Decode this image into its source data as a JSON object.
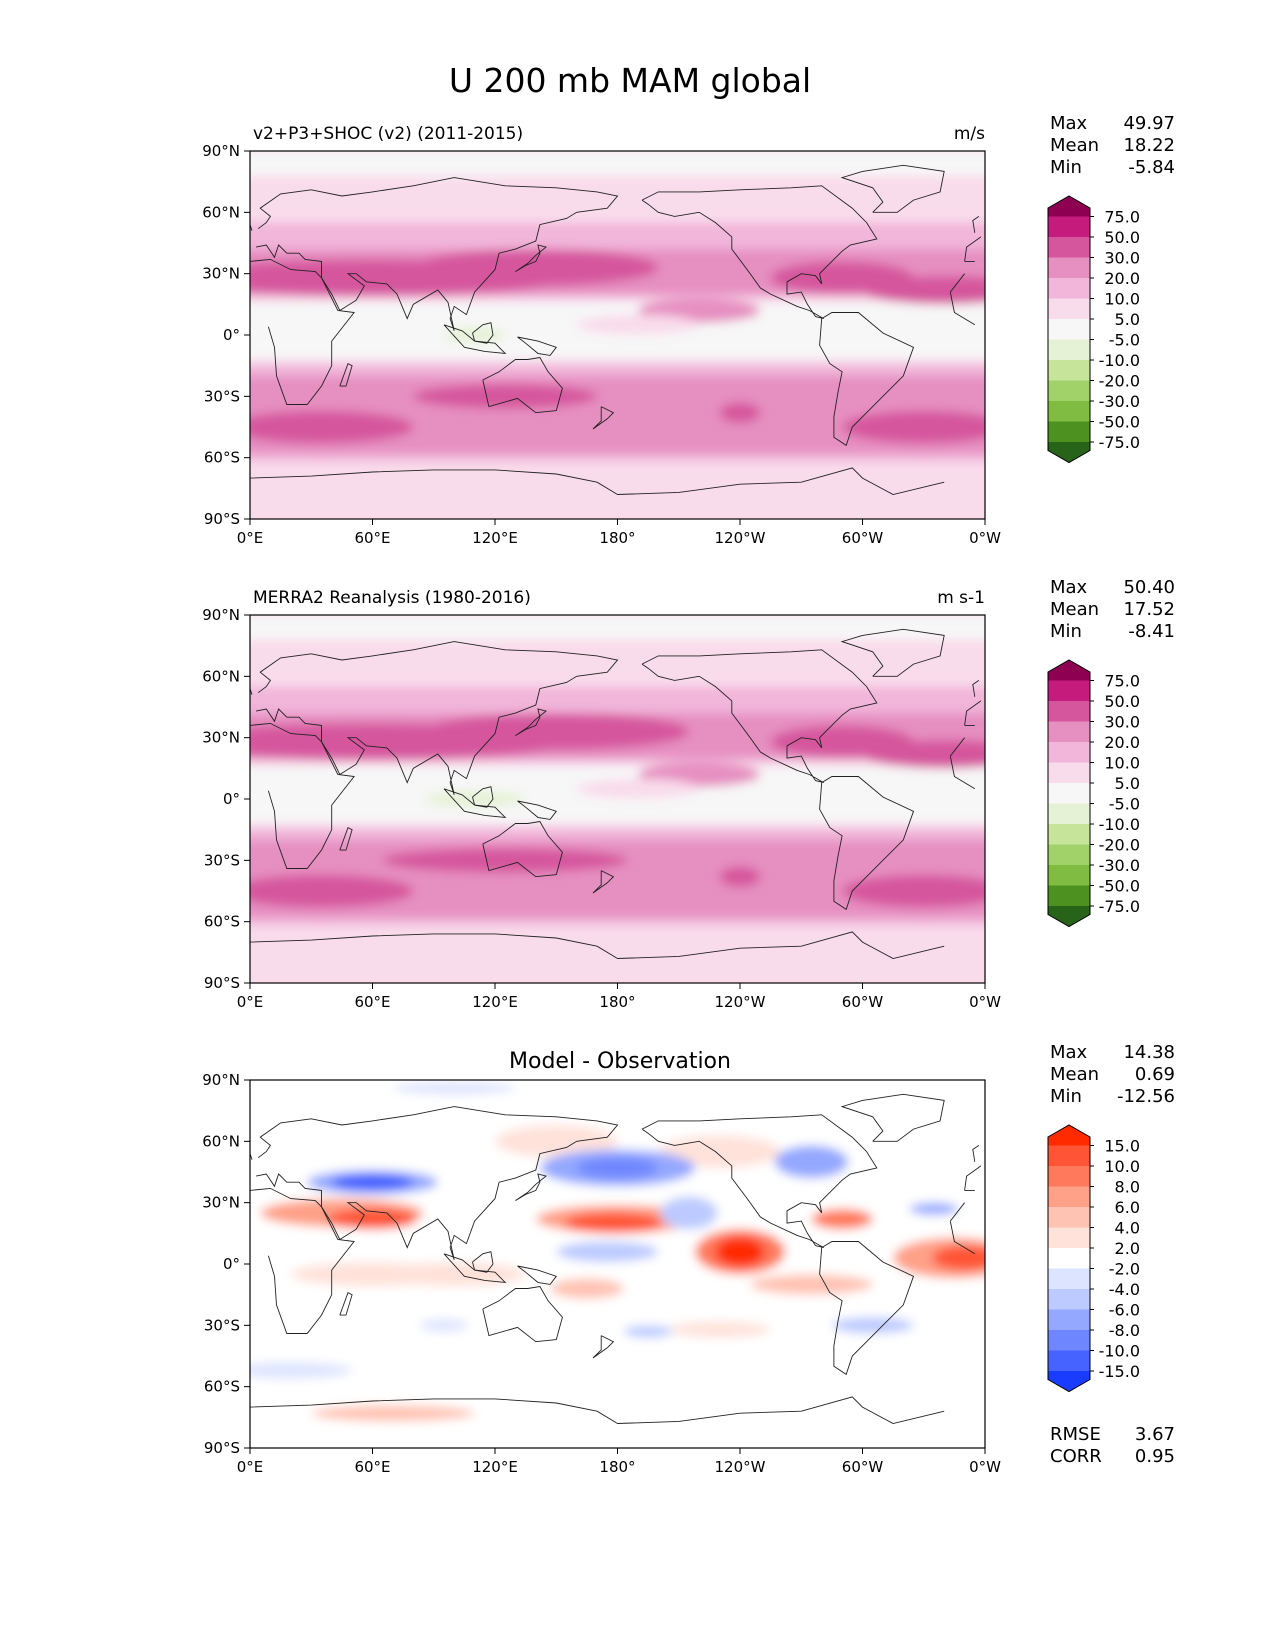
{
  "title": "U 200 mb MAM global",
  "axes": {
    "lat_labels": [
      "90°N",
      "60°N",
      "30°N",
      "0°",
      "30°S",
      "60°S",
      "90°S"
    ],
    "lon_labels": [
      "0°E",
      "60°E",
      "120°E",
      "180°",
      "120°W",
      "60°W",
      "0°W"
    ]
  },
  "panels": [
    {
      "id": "model",
      "left_title": "v2+P3+SHOC (v2) (2011-2015)",
      "center_title": "",
      "units": "m/s",
      "stats": [
        {
          "label": "Max",
          "value": "49.97"
        },
        {
          "label": "Mean",
          "value": "18.22"
        },
        {
          "label": "Min",
          "value": "-5.84"
        }
      ],
      "extra_stats": [],
      "colorbar": {
        "ticks": [
          "75.0",
          "50.0",
          "30.0",
          "20.0",
          "10.0",
          "5.0",
          "-5.0",
          "-10.0",
          "-20.0",
          "-30.0",
          "-50.0",
          "-75.0"
        ],
        "colors": [
          "#8e0152",
          "#c51b7d",
          "#d6569e",
          "#e68fc1",
          "#f1b6da",
          "#f9dcec",
          "#f7f7f7",
          "#e6f2d6",
          "#c6e59a",
          "#a1d26a",
          "#7fbc41",
          "#4d9221",
          "#276419"
        ]
      },
      "field": "model"
    },
    {
      "id": "obs",
      "left_title": "MERRA2 Reanalysis (1980-2016)",
      "center_title": "",
      "units": "m s-1",
      "stats": [
        {
          "label": "Max",
          "value": "50.40"
        },
        {
          "label": "Mean",
          "value": "17.52"
        },
        {
          "label": "Min",
          "value": "-8.41"
        }
      ],
      "extra_stats": [],
      "colorbar": {
        "ticks": [
          "75.0",
          "50.0",
          "30.0",
          "20.0",
          "10.0",
          "5.0",
          "-5.0",
          "-10.0",
          "-20.0",
          "-30.0",
          "-50.0",
          "-75.0"
        ],
        "colors": [
          "#8e0152",
          "#c51b7d",
          "#d6569e",
          "#e68fc1",
          "#f1b6da",
          "#f9dcec",
          "#f7f7f7",
          "#e6f2d6",
          "#c6e59a",
          "#a1d26a",
          "#7fbc41",
          "#4d9221",
          "#276419"
        ]
      },
      "field": "obs"
    },
    {
      "id": "diff",
      "left_title": "",
      "center_title": "Model - Observation",
      "units": "",
      "stats": [
        {
          "label": "Max",
          "value": "14.38"
        },
        {
          "label": "Mean",
          "value": "0.69"
        },
        {
          "label": "Min",
          "value": "-12.56"
        }
      ],
      "extra_stats": [
        {
          "label": "RMSE",
          "value": "3.67"
        },
        {
          "label": "CORR",
          "value": "0.95"
        }
      ],
      "colorbar": {
        "ticks": [
          "15.0",
          "10.0",
          "8.0",
          "6.0",
          "4.0",
          "2.0",
          "-2.0",
          "-4.0",
          "-6.0",
          "-8.0",
          "-10.0",
          "-15.0"
        ],
        "colors": [
          "#ff2a00",
          "#ff5536",
          "#ff7a5c",
          "#ffa088",
          "#ffc3b3",
          "#ffe2da",
          "#ffffff",
          "#dde4ff",
          "#bccaff",
          "#94a8ff",
          "#6e86ff",
          "#4763ff",
          "#1a3cff"
        ]
      },
      "field": "diff"
    }
  ]
}
